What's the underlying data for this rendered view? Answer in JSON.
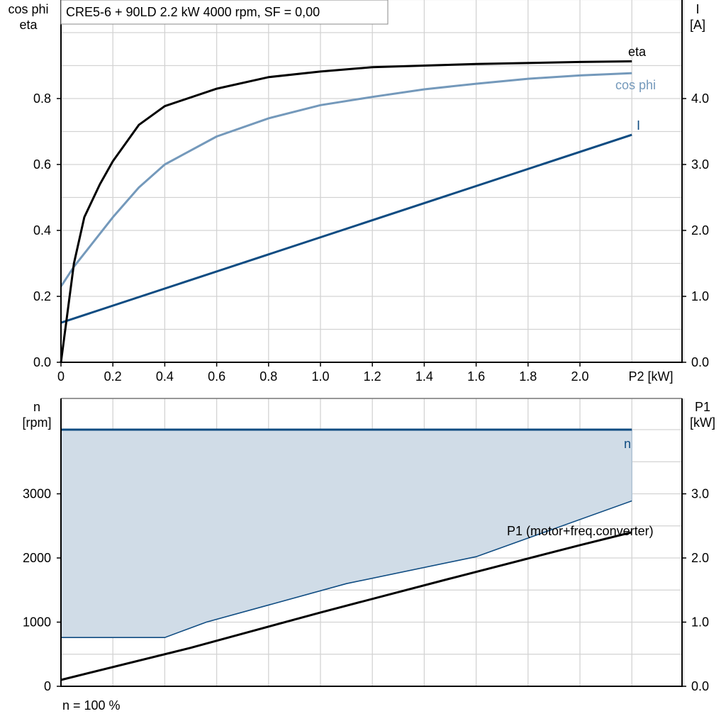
{
  "title": "CRE5-6 + 90LD   2.2 kW   4000 rpm, SF = 0,00",
  "footer_note": "n = 100 %",
  "colors": {
    "eta": "#000000",
    "cos_phi": "#7499bb",
    "current": "#0f4c82",
    "speed": "#0f4c82",
    "speed_fill": "#d0dce7",
    "p1": "#000000",
    "grid": "#d3d3d3"
  },
  "chart_data": [
    {
      "type": "line",
      "xlabel": "P2 [kW]",
      "ylabel_left": [
        "cos phi",
        "eta"
      ],
      "ylabel_right": [
        "I",
        "[A]"
      ],
      "xlim": [
        0,
        2.4
      ],
      "ylim_left": [
        0,
        1.1
      ],
      "ylim_right": [
        0,
        5.5
      ],
      "x_ticks": [
        "0",
        "0.2",
        "0.4",
        "0.6",
        "0.8",
        "1.0",
        "1.2",
        "1.4",
        "1.6",
        "1.8",
        "2.0"
      ],
      "y_ticks_left": [
        "0.0",
        "0.2",
        "0.4",
        "0.6",
        "0.8"
      ],
      "y_ticks_right": [
        "0.0",
        "1.0",
        "2.0",
        "3.0",
        "4.0"
      ],
      "grid": true,
      "series": [
        {
          "name": "eta",
          "axis": "left",
          "x": [
            0,
            0.05,
            0.09,
            0.15,
            0.2,
            0.3,
            0.4,
            0.6,
            0.8,
            1.0,
            1.2,
            1.6,
            2.0,
            2.2
          ],
          "y": [
            0,
            0.3,
            0.44,
            0.54,
            0.61,
            0.72,
            0.777,
            0.83,
            0.865,
            0.882,
            0.895,
            0.905,
            0.911,
            0.913
          ]
        },
        {
          "name": "cos phi",
          "axis": "left",
          "x": [
            0,
            0.05,
            0.1,
            0.2,
            0.3,
            0.4,
            0.6,
            0.8,
            1.0,
            1.2,
            1.4,
            1.6,
            1.8,
            2.0,
            2.2
          ],
          "y": [
            0.23,
            0.29,
            0.34,
            0.44,
            0.53,
            0.6,
            0.685,
            0.74,
            0.78,
            0.805,
            0.828,
            0.845,
            0.86,
            0.87,
            0.877
          ]
        },
        {
          "name": "I",
          "axis": "right",
          "x": [
            0,
            2.2
          ],
          "y": [
            0.6,
            3.45
          ]
        }
      ]
    },
    {
      "type": "area",
      "ylabel_left": [
        "n",
        "[rpm]"
      ],
      "ylabel_right": [
        "P1",
        "[kW]"
      ],
      "xlim": [
        0,
        2.4
      ],
      "ylim_left": [
        0,
        4500
      ],
      "ylim_right": [
        0,
        4.5
      ],
      "y_ticks_left": [
        "0",
        "1000",
        "2000",
        "3000"
      ],
      "y_ticks_right": [
        "0.0",
        "1.0",
        "2.0",
        "3.0"
      ],
      "grid": true,
      "series": [
        {
          "name": "n",
          "axis": "left",
          "x": [
            0,
            2.2
          ],
          "y": [
            4000,
            4000
          ]
        },
        {
          "name": "n lower limit",
          "axis": "left",
          "x": [
            0,
            0.4,
            0.56,
            1.1,
            1.6,
            2.2
          ],
          "y": [
            760,
            760,
            1000,
            1600,
            2020,
            2890
          ]
        },
        {
          "name": "P1 (motor+freq.converter)",
          "axis": "right",
          "x": [
            0,
            0.5,
            1.0,
            1.5,
            2.0,
            2.2
          ],
          "y": [
            0.1,
            0.6,
            1.15,
            1.68,
            2.2,
            2.4
          ]
        }
      ]
    }
  ]
}
